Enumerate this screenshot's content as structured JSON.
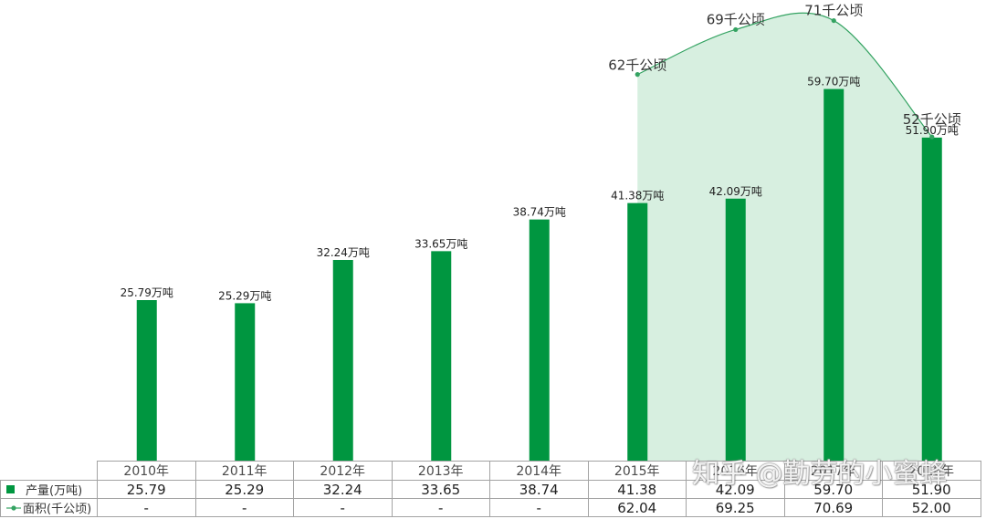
{
  "chart_data": {
    "type": "bar",
    "categories": [
      "2010年",
      "2011年",
      "2012年",
      "2013年",
      "2014年",
      "2015年",
      "2016年",
      "2017年",
      "2018年"
    ],
    "ylim": [
      0,
      74
    ],
    "grid": false,
    "legend": "data-table",
    "series": [
      {
        "name": "产量(万吨)",
        "type": "bar",
        "values": [
          25.79,
          25.29,
          32.24,
          33.65,
          38.74,
          41.38,
          42.09,
          59.7,
          51.9
        ],
        "data_labels": [
          "25.79万吨",
          "25.29万吨",
          "32.24万吨",
          "33.65万吨",
          "38.74万吨",
          "41.38万吨",
          "42.09万吨",
          "59.70万吨",
          "51.90万吨"
        ],
        "table_cells": [
          "25.79",
          "25.29",
          "32.24",
          "33.65",
          "38.74",
          "41.38",
          "42.09",
          "59.70",
          "51.90"
        ],
        "color": "#009640"
      },
      {
        "name": "面积(千公顷)",
        "type": "area",
        "smooth": true,
        "values": [
          null,
          null,
          null,
          null,
          null,
          62.04,
          69.25,
          70.69,
          52.0
        ],
        "data_labels": [
          null,
          null,
          null,
          null,
          null,
          "62千公顷",
          "69千公顷",
          "71千公顷",
          "52千公顷"
        ],
        "table_cells": [
          "-",
          "-",
          "-",
          "-",
          "-",
          "62.04",
          "69.25",
          "70.69",
          "52.00"
        ],
        "color": "#34a362",
        "fill": "#d7efe0"
      }
    ]
  },
  "watermark": "知乎 @勤劳的小蜜蜂"
}
